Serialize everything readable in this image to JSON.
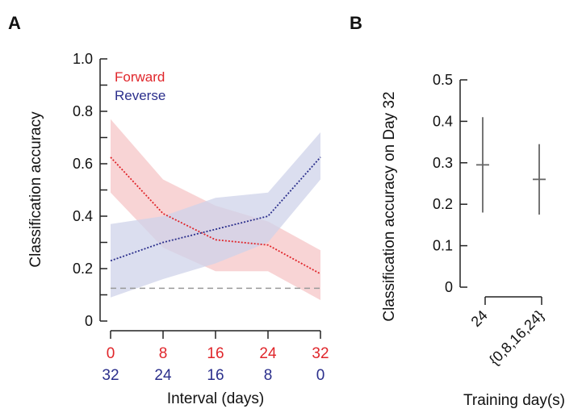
{
  "panels": {
    "a_label": "A",
    "b_label": "B"
  },
  "colors": {
    "forward": "#e0262b",
    "reverse": "#2b2f8c",
    "forward_band": "#f6c6c7",
    "reverse_band": "#cfd3ea",
    "chance": "#9a9a9a",
    "axis": "#222222",
    "errorbar": "#666666"
  },
  "chart_data": [
    {
      "type": "line",
      "panel": "A",
      "ylabel": "Classification accuracy",
      "xlabel": "Interval (days)",
      "ylim": [
        0,
        1.0
      ],
      "y_ticks": [
        {
          "value": 0,
          "label": "0"
        },
        {
          "value": 0.2,
          "label": "0.2"
        },
        {
          "value": 0.4,
          "label": "0.4"
        },
        {
          "value": 0.6,
          "label": "0.6"
        },
        {
          "value": 0.8,
          "label": "0.8"
        },
        {
          "value": 1.0,
          "label": "1.0"
        }
      ],
      "y_minor": [
        0.1,
        0.3,
        0.5,
        0.7,
        0.9
      ],
      "x": [
        0,
        8,
        16,
        24,
        32
      ],
      "x_tick_labels_forward": [
        "0",
        "8",
        "16",
        "24",
        "32"
      ],
      "x_tick_labels_reverse": [
        "32",
        "24",
        "16",
        "8",
        "0"
      ],
      "chance_level": 0.125,
      "legend_position": "top-left",
      "series": [
        {
          "name": "Forward",
          "values": [
            0.625,
            0.41,
            0.31,
            0.29,
            0.18
          ],
          "lower": [
            0.49,
            0.28,
            0.19,
            0.19,
            0.08
          ],
          "upper": [
            0.77,
            0.54,
            0.44,
            0.38,
            0.27
          ]
        },
        {
          "name": "Reverse",
          "values": [
            0.23,
            0.3,
            0.35,
            0.4,
            0.625
          ],
          "lower": [
            0.09,
            0.16,
            0.22,
            0.3,
            0.54
          ],
          "upper": [
            0.37,
            0.4,
            0.47,
            0.49,
            0.72
          ]
        }
      ]
    },
    {
      "type": "errorbar",
      "panel": "B",
      "ylabel": "Classification accuracy on Day 32",
      "xlabel": "Training day(s)",
      "ylim": [
        0,
        0.5
      ],
      "y_ticks": [
        {
          "value": 0,
          "label": "0"
        },
        {
          "value": 0.1,
          "label": "0.1"
        },
        {
          "value": 0.2,
          "label": "0.2"
        },
        {
          "value": 0.3,
          "label": "0.3"
        },
        {
          "value": 0.4,
          "label": "0.4"
        },
        {
          "value": 0.5,
          "label": "0.5"
        }
      ],
      "categories": [
        "24",
        "{0,8,16,24}"
      ],
      "values": [
        0.295,
        0.26
      ],
      "lower": [
        0.18,
        0.175
      ],
      "upper": [
        0.41,
        0.345
      ]
    }
  ]
}
